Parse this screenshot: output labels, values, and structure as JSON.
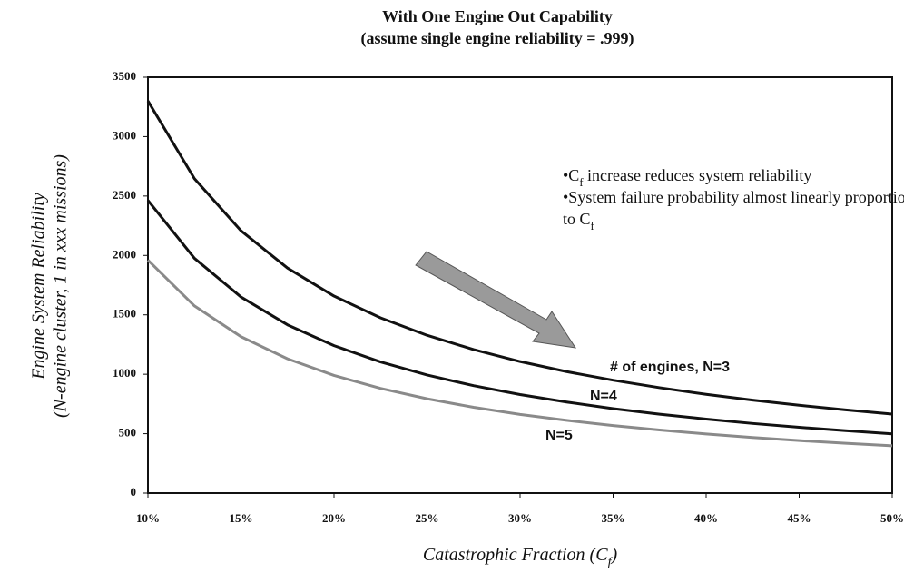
{
  "chart_data": {
    "type": "line",
    "title": [
      "With One Engine Out Capability",
      "(assume single engine reliability = .999)"
    ],
    "xlabel": [
      "Catastrophic Fraction (C",
      "f",
      ")"
    ],
    "ylabel": [
      "Engine System Reliability",
      "(N-engine cluster, 1 in xxx missions)"
    ],
    "annotation": [
      [
        "•C",
        "f",
        " increase reduces system reliability"
      ],
      [
        "•System failure probability almost linearly proportional"
      ],
      [
        "to C",
        "f"
      ]
    ],
    "x": [
      10,
      12.5,
      15,
      17.5,
      20,
      22.5,
      25,
      27.5,
      30,
      32.5,
      35,
      37.5,
      40,
      42.5,
      45,
      47.5,
      50
    ],
    "series": [
      {
        "name": "# of engines, N=3",
        "color": "#111111",
        "values": [
          3300,
          2646,
          2208,
          1894,
          1658,
          1475,
          1328,
          1208,
          1107,
          1022,
          950,
          887,
          831,
          782,
          739,
          700,
          665
        ]
      },
      {
        "name": "N=4",
        "color": "#111111",
        "values": [
          2463,
          1976,
          1650,
          1416,
          1241,
          1104,
          994,
          904,
          829,
          766,
          711,
          664,
          623,
          586,
          554,
          525,
          499
        ]
      },
      {
        "name": "N=5",
        "color": "#8a8a8a",
        "values": [
          1961,
          1575,
          1316,
          1130,
          990,
          881,
          794,
          722,
          662,
          612,
          568,
          531,
          498,
          468,
          442,
          419,
          398
        ]
      }
    ],
    "xlim": [
      10,
      50
    ],
    "xticks": [
      {
        "value": 10,
        "label": "10%"
      },
      {
        "value": 15,
        "label": "15%"
      },
      {
        "value": 20,
        "label": "20%"
      },
      {
        "value": 25,
        "label": "25%"
      },
      {
        "value": 30,
        "label": "30%"
      },
      {
        "value": 35,
        "label": "35%"
      },
      {
        "value": 40,
        "label": "40%"
      },
      {
        "value": 45,
        "label": "45%"
      },
      {
        "value": 50,
        "label": "50%"
      }
    ],
    "ylim": [
      0,
      3500
    ],
    "yticks": [
      0,
      500,
      1000,
      1500,
      2000,
      2500,
      3000,
      3500
    ],
    "grid": false
  }
}
